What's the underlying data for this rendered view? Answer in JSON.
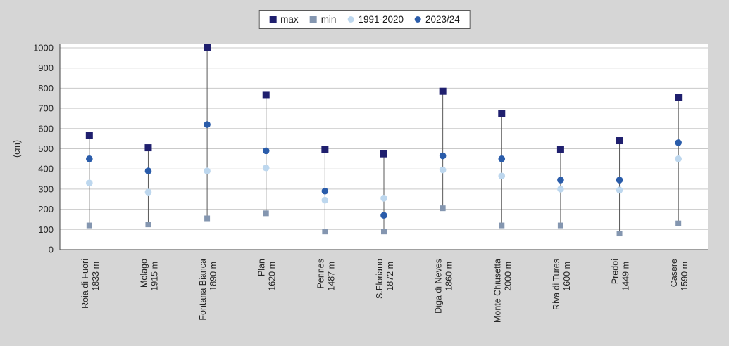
{
  "chart_data": {
    "type": "scatter",
    "title": "",
    "xlabel": "",
    "ylabel": "(cm)",
    "ylim": [
      0,
      1000
    ],
    "yticks": [
      0,
      100,
      200,
      300,
      400,
      500,
      600,
      700,
      800,
      900,
      1000
    ],
    "grid": true,
    "legend_position": "top-center",
    "hi_lo_lines": true,
    "colors": {
      "background": "#d6d6d6",
      "plot_background": "#ffffff",
      "gridline": "#c9c9c9",
      "axis": "#404040",
      "hilo_line": "#595959",
      "text": "#262626"
    },
    "categories": [
      {
        "name": "Roia di Fuori",
        "elevation": "1833 m"
      },
      {
        "name": "Melago",
        "elevation": "1915 m"
      },
      {
        "name": "Fontana Bianca",
        "elevation": "1890 m"
      },
      {
        "name": "Plan",
        "elevation": "1620 m"
      },
      {
        "name": "Pennes",
        "elevation": "1487 m"
      },
      {
        "name": "S.Floriano",
        "elevation": "1872 m"
      },
      {
        "name": "Diga di Neves",
        "elevation": "1860 m"
      },
      {
        "name": "Monte Chiusetta",
        "elevation": "2000 m"
      },
      {
        "name": "Riva di Tures",
        "elevation": "1600 m"
      },
      {
        "name": "Predoi",
        "elevation": "1449 m"
      },
      {
        "name": "Casere",
        "elevation": "1590 m"
      }
    ],
    "series": [
      {
        "name": "max",
        "marker": "square",
        "color": "#1f1f6e",
        "values": [
          565,
          505,
          1000,
          765,
          495,
          475,
          785,
          675,
          495,
          540,
          755
        ]
      },
      {
        "name": "min",
        "marker": "square",
        "color": "#8496b0",
        "values": [
          120,
          125,
          155,
          180,
          90,
          90,
          205,
          120,
          120,
          80,
          130
        ]
      },
      {
        "name": "1991-2020",
        "marker": "circle",
        "color": "#bdd7ee",
        "values": [
          330,
          285,
          390,
          405,
          245,
          255,
          395,
          365,
          300,
          295,
          450
        ]
      },
      {
        "name": "2023/24",
        "marker": "circle",
        "color": "#2a5caa",
        "values": [
          450,
          390,
          620,
          490,
          290,
          170,
          465,
          450,
          345,
          345,
          530
        ]
      }
    ]
  }
}
